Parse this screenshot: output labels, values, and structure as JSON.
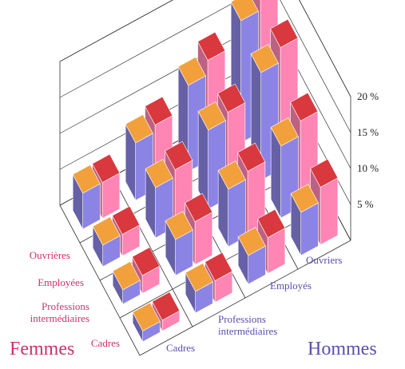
{
  "chart_data": {
    "type": "bar3d",
    "row_axis": {
      "title": "Femmes",
      "categories": [
        "Ouvrières",
        "Employées",
        "Professions intermédiaires",
        "Cadres"
      ]
    },
    "col_axis": {
      "title": "Hommes",
      "categories": [
        "Ouvriers",
        "Employés",
        "Professions intermédiaires",
        "Cadres"
      ]
    },
    "series": [
      {
        "color": "#7f78d0",
        "values": [
          [
            17,
            12,
            8,
            5
          ],
          [
            15,
            11,
            7,
            3
          ],
          [
            10,
            8,
            5,
            2
          ],
          [
            6,
            4,
            3,
            1.5
          ]
        ]
      },
      {
        "color": "#ec79a4",
        "values": [
          [
            20,
            14,
            9,
            5
          ],
          [
            17,
            12,
            8,
            3
          ],
          [
            12,
            9,
            6,
            2.5
          ],
          [
            8,
            5,
            3,
            1.5
          ]
        ]
      }
    ],
    "zlim": [
      0,
      20
    ],
    "zticks": [
      {
        "value": 5,
        "label": "5 %"
      },
      {
        "value": 10,
        "label": "10 %"
      },
      {
        "value": 15,
        "label": "15 %"
      },
      {
        "value": 20,
        "label": "20 %"
      }
    ]
  }
}
